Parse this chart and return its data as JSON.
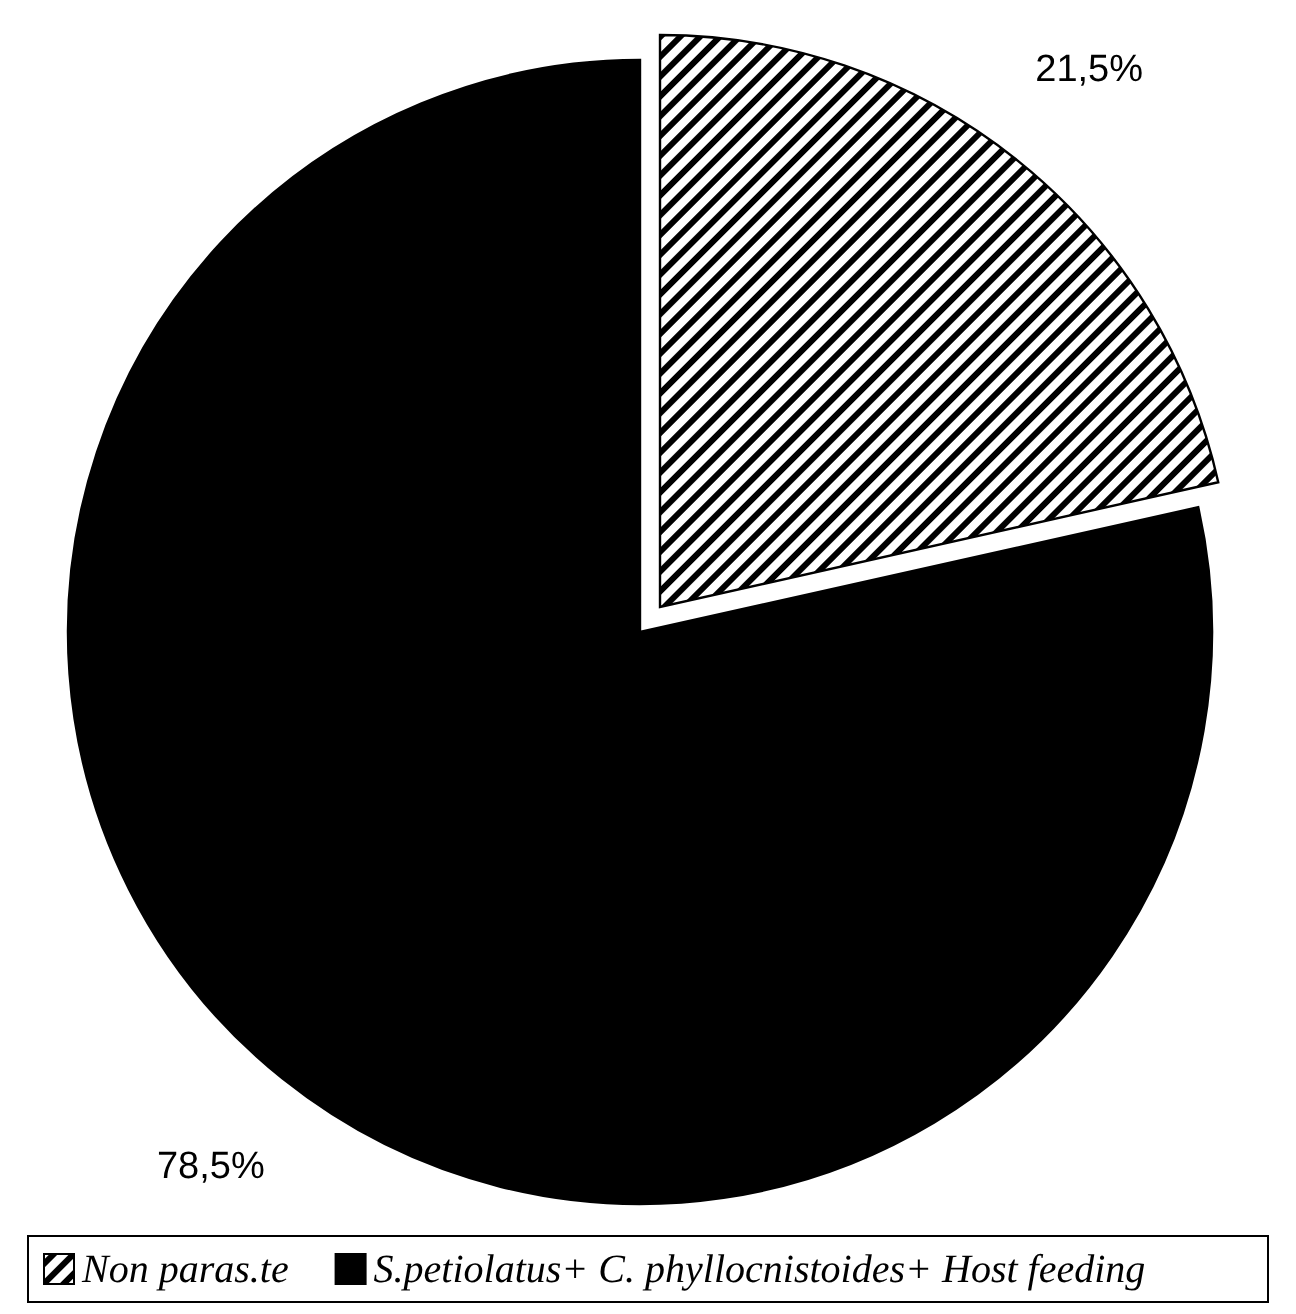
{
  "chart_data": {
    "type": "pie",
    "categories": [
      "Non paras.te",
      "S.petiolatus+ C. phyllocnistoides+ Host feeding"
    ],
    "values": [
      21.5,
      78.5
    ],
    "colors": [
      "#000000",
      "#000000"
    ],
    "value_labels": [
      "21,5%",
      "78,5%"
    ],
    "legend": "bottom"
  }
}
